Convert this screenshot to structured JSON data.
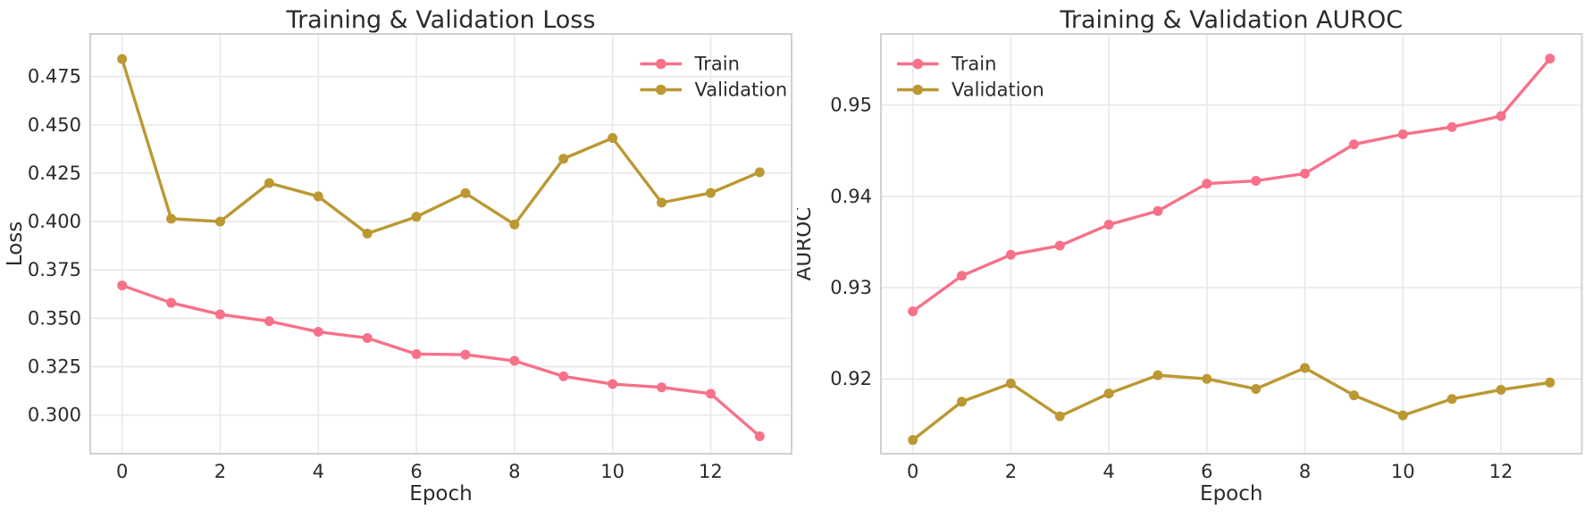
{
  "colors": {
    "train": "#f77189",
    "validation": "#bb9832",
    "grid": "#e9e9e9",
    "spine": "#d0d0d0",
    "text": "#2b2b2b",
    "background": "#ffffff"
  },
  "chart_data": [
    {
      "type": "line",
      "title": "Training & Validation Loss",
      "xlabel": "Epoch",
      "ylabel": "Loss",
      "x": [
        0,
        1,
        2,
        3,
        4,
        5,
        6,
        7,
        8,
        9,
        10,
        11,
        12,
        13
      ],
      "series": [
        {
          "name": "Train",
          "color": "#f77189",
          "values": [
            0.367,
            0.358,
            0.352,
            0.3485,
            0.343,
            0.3398,
            0.3315,
            0.3312,
            0.328,
            0.32,
            0.316,
            0.3143,
            0.311,
            0.289
          ]
        },
        {
          "name": "Validation",
          "color": "#bb9832",
          "values": [
            0.484,
            0.4015,
            0.4,
            0.4199,
            0.413,
            0.3938,
            0.4025,
            0.4147,
            0.3985,
            0.4325,
            0.4432,
            0.4098,
            0.4148,
            0.4255
          ]
        }
      ],
      "xlim": [
        -0.65,
        13.65
      ],
      "ylim": [
        0.28,
        0.497
      ],
      "xticks": [
        0,
        2,
        4,
        6,
        8,
        10,
        12
      ],
      "xtick_labels": [
        "0",
        "2",
        "4",
        "6",
        "8",
        "10",
        "12"
      ],
      "yticks": [
        0.3,
        0.325,
        0.35,
        0.375,
        0.4,
        0.425,
        0.45,
        0.475
      ],
      "ytick_labels": [
        "0.300",
        "0.325",
        "0.350",
        "0.375",
        "0.400",
        "0.425",
        "0.450",
        "0.475"
      ],
      "grid": true,
      "legend_position": "top-right",
      "legend": [
        "Train",
        "Validation"
      ]
    },
    {
      "type": "line",
      "title": "Training & Validation AUROC",
      "xlabel": "Epoch",
      "ylabel": "AUROC",
      "x": [
        0,
        1,
        2,
        3,
        4,
        5,
        6,
        7,
        8,
        9,
        10,
        11,
        12,
        13
      ],
      "series": [
        {
          "name": "Train",
          "color": "#f77189",
          "values": [
            0.9274,
            0.9313,
            0.9336,
            0.9346,
            0.9369,
            0.9384,
            0.9414,
            0.9417,
            0.9425,
            0.9457,
            0.9468,
            0.9476,
            0.9488,
            0.9551
          ]
        },
        {
          "name": "Validation",
          "color": "#bb9832",
          "values": [
            0.9133,
            0.9175,
            0.9195,
            0.9159,
            0.9184,
            0.9204,
            0.92,
            0.9189,
            0.9212,
            0.9182,
            0.916,
            0.9178,
            0.9188,
            0.9196
          ]
        }
      ],
      "xlim": [
        -0.65,
        13.65
      ],
      "ylim": [
        0.9118,
        0.9578
      ],
      "xticks": [
        0,
        2,
        4,
        6,
        8,
        10,
        12
      ],
      "xtick_labels": [
        "0",
        "2",
        "4",
        "6",
        "8",
        "10",
        "12"
      ],
      "yticks": [
        0.92,
        0.93,
        0.94,
        0.95
      ],
      "ytick_labels": [
        "0.92",
        "0.93",
        "0.94",
        "0.95"
      ],
      "grid": true,
      "legend_position": "top-left",
      "legend": [
        "Train",
        "Validation"
      ]
    }
  ]
}
